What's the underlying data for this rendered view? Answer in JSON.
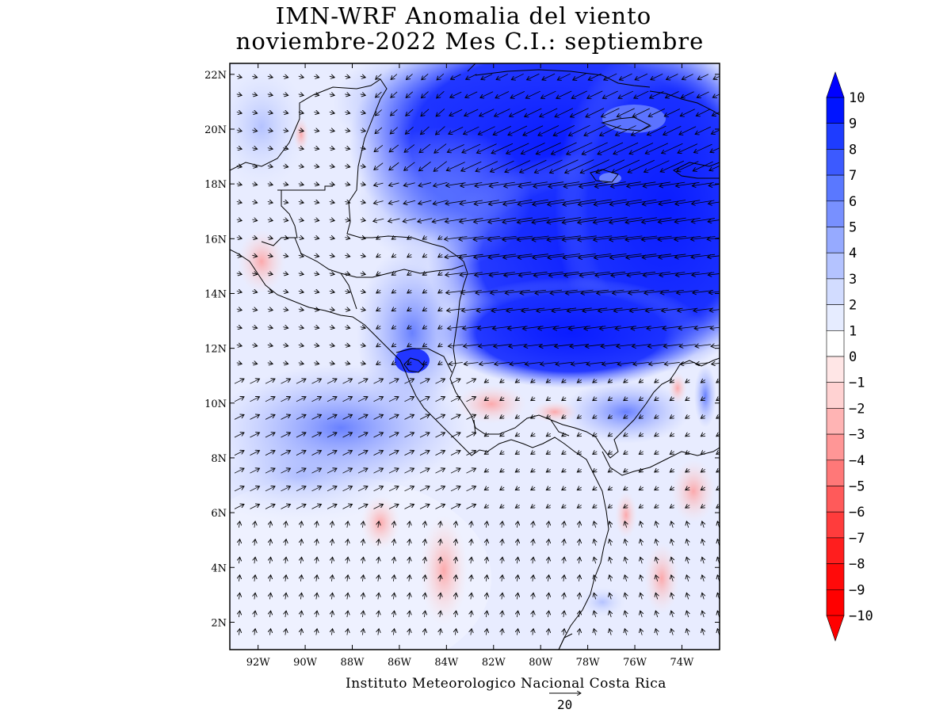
{
  "title_line1": "IMN-WRF Anomalia del viento",
  "title_line2": "noviembre-2022 Mes C.I.: septiembre",
  "footer": "Instituto Meteorologico Nacional Costa Rica",
  "reference_vector": {
    "label": "20",
    "magnitude": 20
  },
  "map": {
    "lon_range": [
      -93.2,
      -72.4
    ],
    "lat_range": [
      1.0,
      22.4
    ],
    "lon_ticks": [
      "92W",
      "90W",
      "88W",
      "86W",
      "84W",
      "82W",
      "80W",
      "78W",
      "76W",
      "74W"
    ],
    "lat_ticks": [
      "2N",
      "4N",
      "6N",
      "8N",
      "10N",
      "12N",
      "14N",
      "16N",
      "18N",
      "20N",
      "22N"
    ]
  },
  "colorbar": {
    "labels": [
      "10",
      "9",
      "8",
      "7",
      "6",
      "5",
      "4",
      "3",
      "2",
      "1",
      "0",
      "-1",
      "-2",
      "-3",
      "-4",
      "-5",
      "-6",
      "-7",
      "-8",
      "-9",
      "-10"
    ],
    "colors": [
      "#0014ff",
      "#1e3cff",
      "#3c5aff",
      "#5a78ff",
      "#7890ff",
      "#96aaff",
      "#b4c3ff",
      "#d2dcff",
      "#e6ecff",
      "#ffffff",
      "#ffe6e6",
      "#ffd2d2",
      "#ffb4b4",
      "#ff9696",
      "#ff7878",
      "#ff5a5a",
      "#ff3c3c",
      "#ff1e1e",
      "#ff0a0a",
      "#ff0000"
    ],
    "max_color": "#0000ff",
    "min_color": "#ff0000"
  }
}
